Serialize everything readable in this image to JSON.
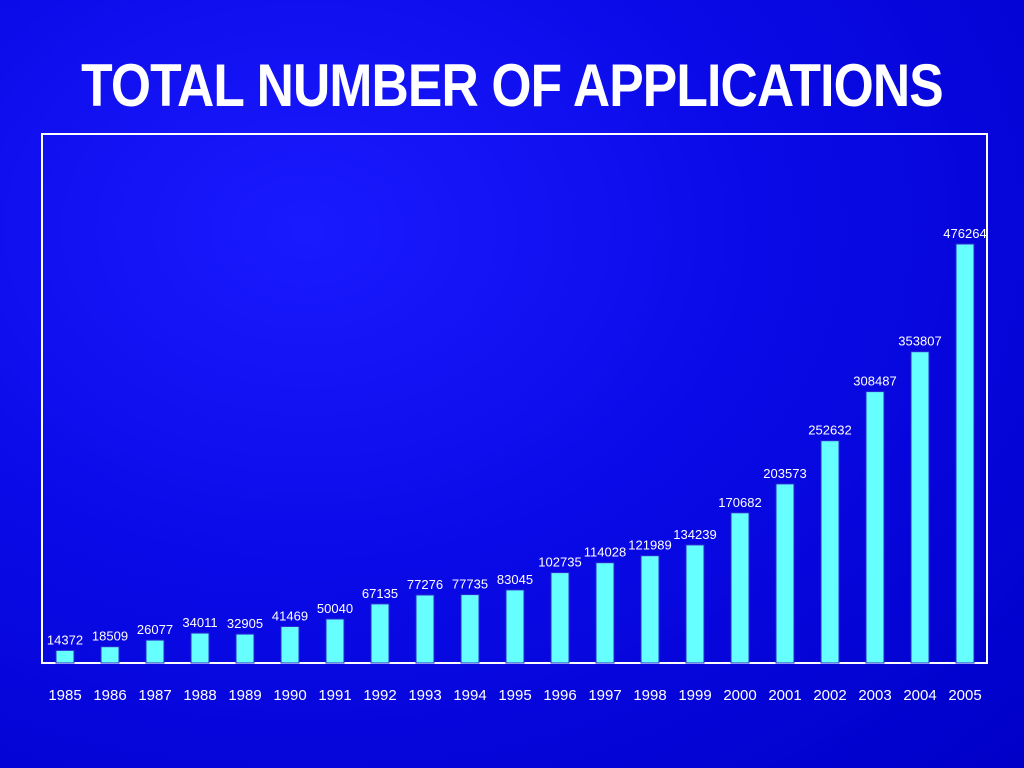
{
  "slide": {
    "title": "TOTAL NUMBER OF APPLICATIONS"
  },
  "colors": {
    "background": "#0a0ae8",
    "bar": "#66ffff",
    "frame": "#ffffff",
    "text": "#ffffff"
  },
  "chart_data": {
    "type": "bar",
    "title": "TOTAL NUMBER OF APPLICATIONS",
    "xlabel": "",
    "ylabel": "",
    "ylim": [
      0,
      500000
    ],
    "grid": false,
    "legend": "none",
    "categories": [
      "1985",
      "1986",
      "1987",
      "1988",
      "1989",
      "1990",
      "1991",
      "1992",
      "1993",
      "1994",
      "1995",
      "1996",
      "1997",
      "1998",
      "1999",
      "2000",
      "2001",
      "2002",
      "2003",
      "2004",
      "2005"
    ],
    "values": [
      14372,
      18509,
      26077,
      34011,
      32905,
      41469,
      50040,
      67135,
      77276,
      77735,
      83045,
      102735,
      114028,
      121989,
      134239,
      170682,
      203573,
      252632,
      308487,
      353807,
      476264
    ],
    "value_labels": [
      "14372",
      "18509",
      "26077",
      "34011",
      "32905",
      "41469",
      "50040",
      "67135",
      "77276",
      "77735",
      "83045",
      "102735",
      "114028",
      "121989",
      "134239",
      "170682",
      "203573",
      "252632",
      "308487",
      "353807",
      "476264"
    ]
  }
}
